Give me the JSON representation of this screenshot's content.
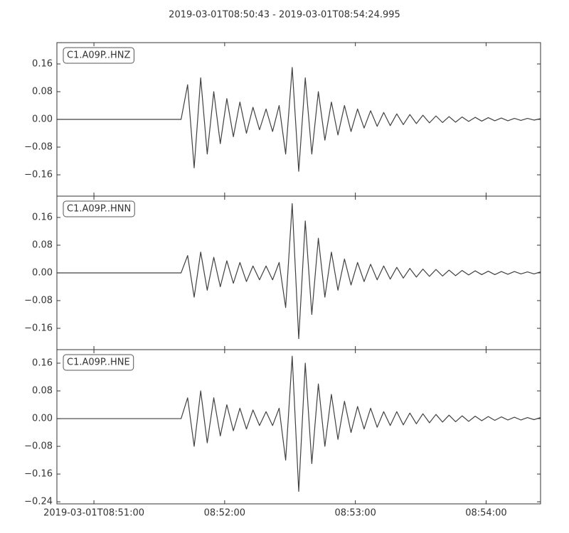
{
  "title": "2019-03-01T08:50:43  -  2019-03-01T08:54:24.995",
  "chart_data": [
    {
      "type": "line",
      "label": "C1.A09P..HNZ",
      "color": "#404040",
      "xlim": [
        0,
        221.995
      ],
      "ylim": [
        -0.2215,
        0.2215
      ],
      "yticks": [
        {
          "value": -0.16,
          "label": "−0.16"
        },
        {
          "value": -0.08,
          "label": "−0.08"
        },
        {
          "value": 0,
          "label": "0.00"
        },
        0.08,
        0.16
      ],
      "x": [
        0,
        3,
        6,
        9,
        12,
        15,
        18,
        21,
        24,
        27,
        30,
        33,
        36,
        39,
        42,
        45,
        48,
        51,
        54,
        57,
        60,
        63,
        66,
        69,
        72,
        75,
        78,
        81,
        84,
        87,
        90,
        93,
        96,
        99,
        102,
        105,
        108,
        111,
        114,
        117,
        120,
        123,
        126,
        129,
        132,
        135,
        138,
        141,
        144,
        147,
        150,
        153,
        156,
        159,
        162,
        165,
        168,
        171,
        174,
        177,
        180,
        183,
        186,
        189,
        192,
        195,
        198,
        201,
        204,
        207,
        210,
        213,
        216,
        219,
        222
      ],
      "values": [
        0,
        0,
        0,
        0,
        0,
        0,
        0,
        0,
        0,
        0,
        0,
        0,
        0,
        0,
        0,
        0,
        0,
        0,
        0,
        0,
        0.1,
        -0.14,
        0.12,
        -0.1,
        0.08,
        -0.07,
        0.06,
        -0.05,
        0.05,
        -0.04,
        0.035,
        -0.03,
        0.03,
        -0.035,
        0.04,
        -0.1,
        0.15,
        -0.15,
        0.12,
        -0.1,
        0.08,
        -0.06,
        0.05,
        -0.045,
        0.04,
        -0.035,
        0.03,
        -0.025,
        0.025,
        -0.02,
        0.02,
        -0.018,
        0.016,
        -0.015,
        0.014,
        -0.012,
        0.012,
        -0.01,
        0.01,
        -0.009,
        0.008,
        -0.008,
        0.007,
        -0.006,
        0.006,
        -0.005,
        0.005,
        -0.004,
        0.004,
        -0.004,
        0.003,
        -0.003,
        0.003,
        -0.002,
        0.002
      ]
    },
    {
      "type": "line",
      "label": "C1.A09P..HNN",
      "color": "#404040",
      "xlim": [
        0,
        221.995
      ],
      "ylim": [
        -0.2215,
        0.2215
      ],
      "yticks": [
        {
          "value": -0.16,
          "label": "−0.16"
        },
        {
          "value": -0.08,
          "label": "−0.08"
        },
        {
          "value": 0,
          "label": "0.00"
        },
        0.08,
        0.16
      ],
      "x": [
        0,
        3,
        6,
        9,
        12,
        15,
        18,
        21,
        24,
        27,
        30,
        33,
        36,
        39,
        42,
        45,
        48,
        51,
        54,
        57,
        60,
        63,
        66,
        69,
        72,
        75,
        78,
        81,
        84,
        87,
        90,
        93,
        96,
        99,
        102,
        105,
        108,
        111,
        114,
        117,
        120,
        123,
        126,
        129,
        132,
        135,
        138,
        141,
        144,
        147,
        150,
        153,
        156,
        159,
        162,
        165,
        168,
        171,
        174,
        177,
        180,
        183,
        186,
        189,
        192,
        195,
        198,
        201,
        204,
        207,
        210,
        213,
        216,
        219,
        222
      ],
      "values": [
        0,
        0,
        0,
        0,
        0,
        0,
        0,
        0,
        0,
        0,
        0,
        0,
        0,
        0,
        0,
        0,
        0,
        0,
        0,
        0,
        0.05,
        -0.07,
        0.06,
        -0.05,
        0.045,
        -0.04,
        0.035,
        -0.03,
        0.03,
        -0.025,
        0.02,
        -0.02,
        0.02,
        -0.02,
        0.03,
        -0.1,
        0.2,
        -0.19,
        0.15,
        -0.12,
        0.1,
        -0.07,
        0.06,
        -0.05,
        0.04,
        -0.035,
        0.03,
        -0.025,
        0.025,
        -0.02,
        0.02,
        -0.018,
        0.016,
        -0.015,
        0.013,
        -0.012,
        0.011,
        -0.01,
        0.01,
        -0.009,
        0.008,
        -0.008,
        0.007,
        -0.006,
        0.006,
        -0.005,
        0.005,
        -0.005,
        0.004,
        -0.004,
        0.004,
        -0.003,
        0.003,
        -0.003,
        0.003
      ]
    },
    {
      "type": "line",
      "label": "C1.A09P..HNE",
      "color": "#404040",
      "xlim": [
        0,
        221.995
      ],
      "ylim": [
        -0.246,
        0.199
      ],
      "yticks": [
        {
          "value": -0.24,
          "label": "−0.24"
        },
        {
          "value": -0.16,
          "label": "−0.16"
        },
        {
          "value": -0.08,
          "label": "−0.08"
        },
        {
          "value": 0,
          "label": "0.00"
        },
        0.08,
        0.16
      ],
      "xticks": [
        {
          "value": 17,
          "label": "2019-03-01T08:51:00"
        },
        {
          "value": 77,
          "label": "08:52:00"
        },
        {
          "value": 137,
          "label": "08:53:00"
        },
        {
          "value": 197,
          "label": "08:54:00"
        }
      ],
      "x": [
        0,
        3,
        6,
        9,
        12,
        15,
        18,
        21,
        24,
        27,
        30,
        33,
        36,
        39,
        42,
        45,
        48,
        51,
        54,
        57,
        60,
        63,
        66,
        69,
        72,
        75,
        78,
        81,
        84,
        87,
        90,
        93,
        96,
        99,
        102,
        105,
        108,
        111,
        114,
        117,
        120,
        123,
        126,
        129,
        132,
        135,
        138,
        141,
        144,
        147,
        150,
        153,
        156,
        159,
        162,
        165,
        168,
        171,
        174,
        177,
        180,
        183,
        186,
        189,
        192,
        195,
        198,
        201,
        204,
        207,
        210,
        213,
        216,
        219,
        222
      ],
      "values": [
        0,
        0,
        0,
        0,
        0,
        0,
        0,
        0,
        0,
        0,
        0,
        0,
        0,
        0,
        0,
        0,
        0,
        0,
        0,
        0,
        0.06,
        -0.08,
        0.08,
        -0.07,
        0.06,
        -0.05,
        0.04,
        -0.035,
        0.03,
        -0.03,
        0.025,
        -0.02,
        0.02,
        -0.02,
        0.03,
        -0.12,
        0.18,
        -0.21,
        0.16,
        -0.13,
        0.1,
        -0.08,
        0.07,
        -0.06,
        0.05,
        -0.04,
        0.035,
        -0.03,
        0.03,
        -0.025,
        0.02,
        -0.02,
        0.02,
        -0.018,
        0.016,
        -0.015,
        0.014,
        -0.012,
        0.012,
        -0.01,
        0.01,
        -0.009,
        0.008,
        -0.008,
        0.007,
        -0.006,
        0.006,
        -0.005,
        0.005,
        -0.004,
        0.004,
        -0.004,
        0.003,
        -0.003,
        0.003
      ]
    }
  ]
}
